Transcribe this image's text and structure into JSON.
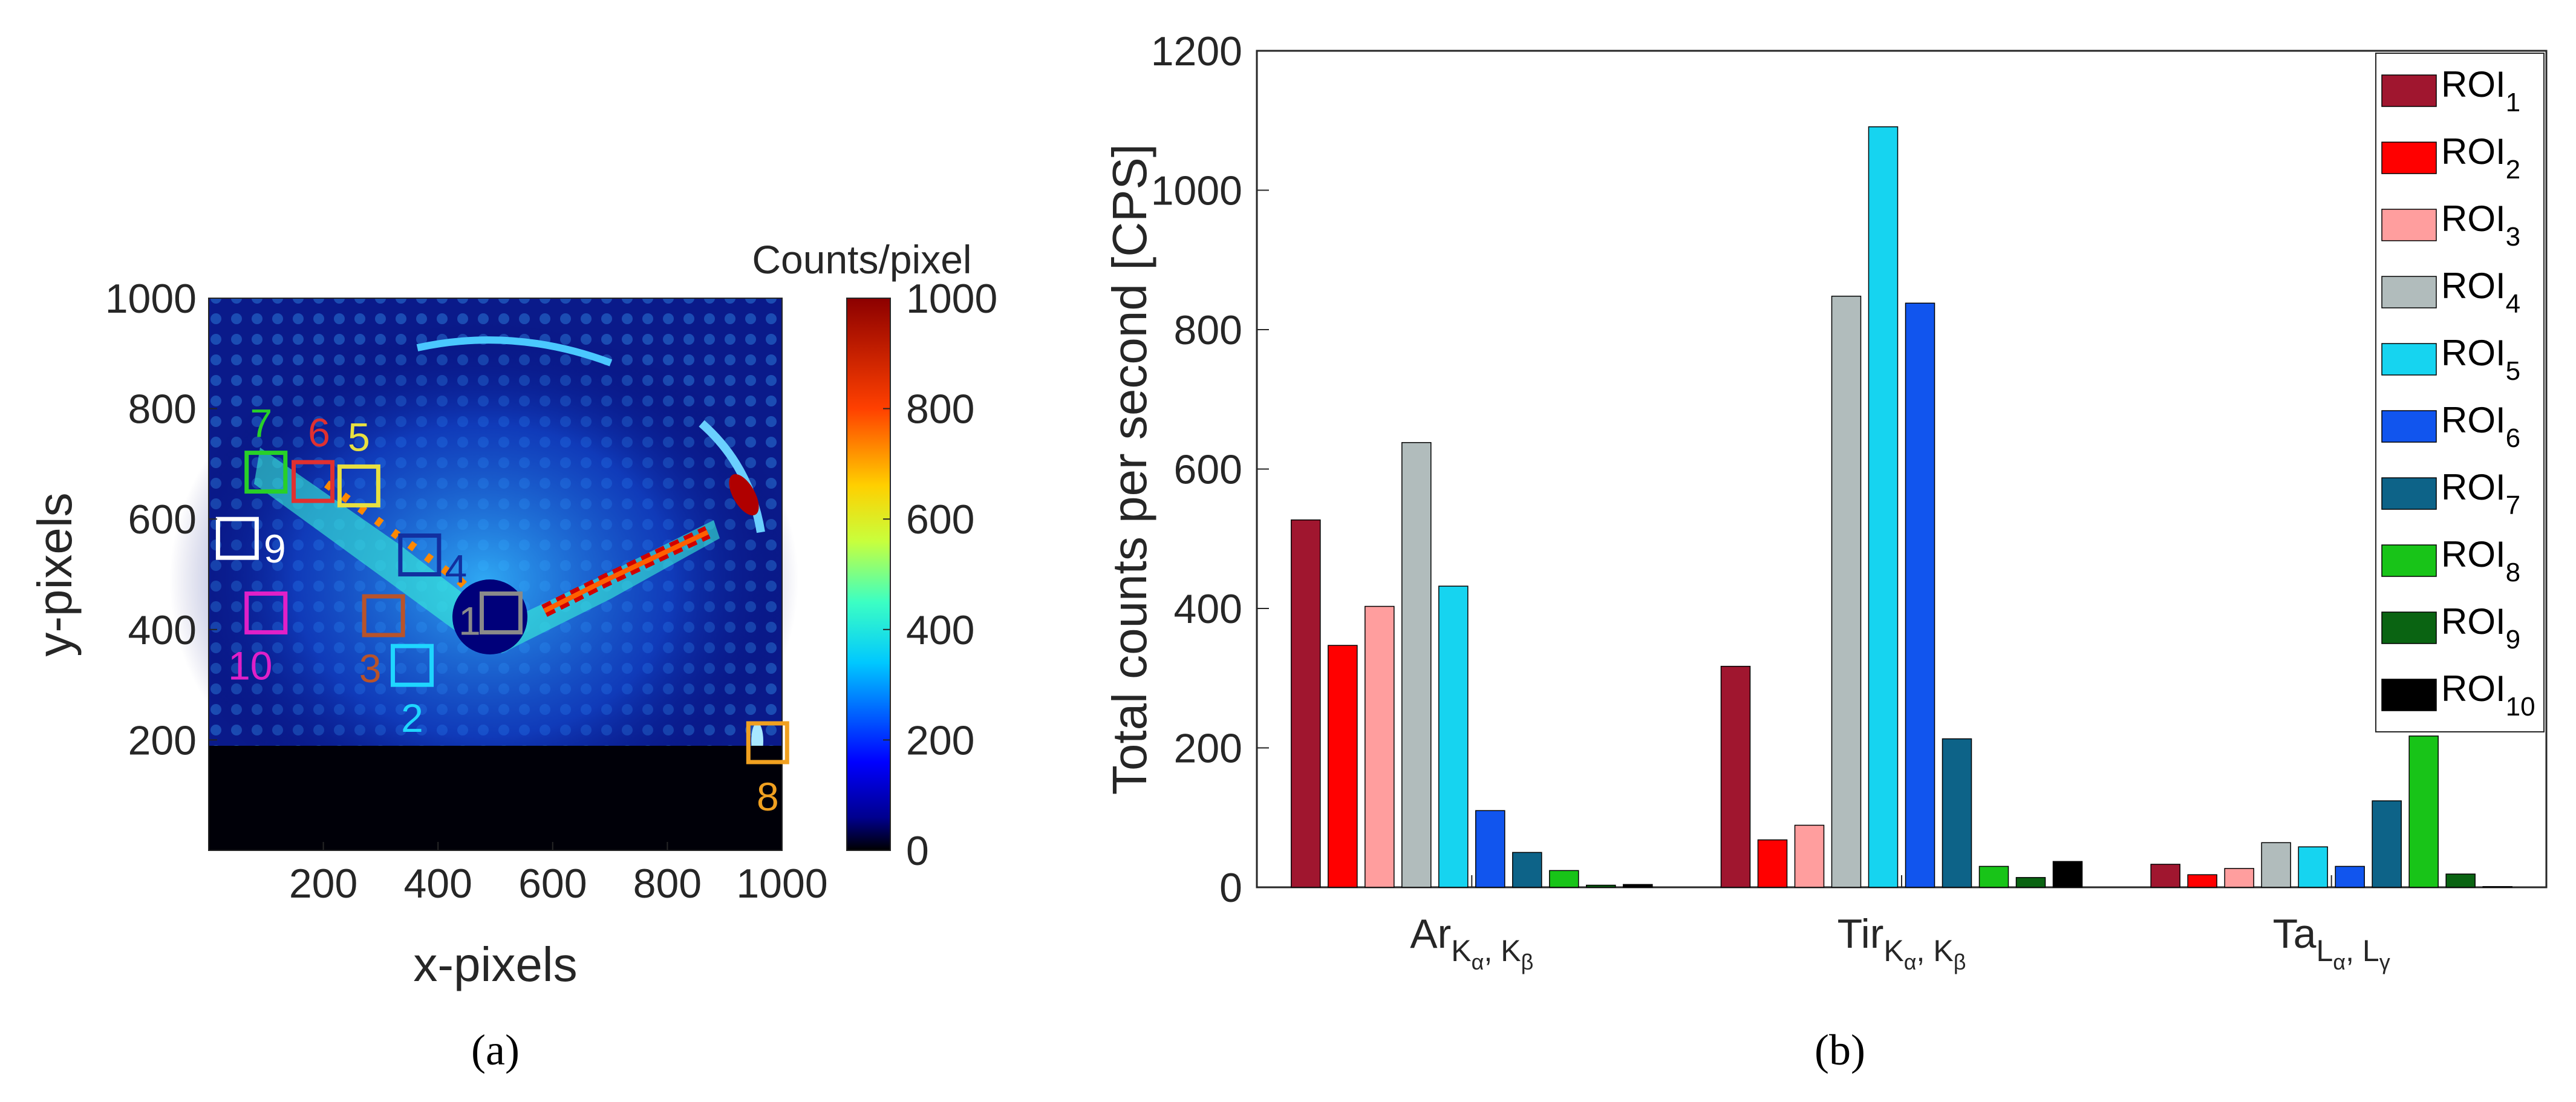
{
  "chart_data": [
    {
      "panel": "(a)",
      "type": "heatmap",
      "xlabel": "x-pixels",
      "ylabel": "y-pixels",
      "x_ticks": [
        "200",
        "400",
        "600",
        "800",
        "1000"
      ],
      "y_ticks": [
        "200",
        "400",
        "600",
        "800",
        "1000"
      ],
      "xlim": [
        0,
        1000
      ],
      "ylim": [
        0,
        1000
      ],
      "colorbar": {
        "title": "Counts/pixel",
        "range": [
          0,
          1000
        ],
        "ticks": [
          "0",
          "200",
          "400",
          "600",
          "800",
          "1000"
        ],
        "colormap": "jet"
      },
      "rois": [
        {
          "label": "1",
          "x": 510,
          "y": 430,
          "color": "#8a8a8a"
        },
        {
          "label": "2",
          "x": 355,
          "y": 335,
          "color": "#1fd6ff"
        },
        {
          "label": "3",
          "x": 305,
          "y": 425,
          "color": "#b8532a"
        },
        {
          "label": "4",
          "x": 368,
          "y": 535,
          "color": "#1230a0"
        },
        {
          "label": "5",
          "x": 262,
          "y": 660,
          "color": "#e8e040"
        },
        {
          "label": "6",
          "x": 182,
          "y": 668,
          "color": "#e03030"
        },
        {
          "label": "7",
          "x": 100,
          "y": 685,
          "color": "#28d028"
        },
        {
          "label": "8",
          "x": 975,
          "y": 195,
          "color": "#f0a020"
        },
        {
          "label": "9",
          "x": 50,
          "y": 565,
          "color": "#ffffff"
        },
        {
          "label": "10",
          "x": 100,
          "y": 430,
          "color": "#e020c8"
        }
      ]
    },
    {
      "panel": "(b)",
      "type": "bar",
      "ylabel": "Total counts per second [CPS]",
      "ylim": [
        0,
        1200
      ],
      "y_ticks": [
        "0",
        "200",
        "400",
        "600",
        "800",
        "1000",
        "1200"
      ],
      "categories": [
        {
          "main": "Ar",
          "sub1": "K",
          "sub1sub": "α",
          "sep": ", ",
          "sub2": "K",
          "sub2sub": "β"
        },
        {
          "main": "Tir",
          "sub1": "K",
          "sub1sub": "α",
          "sep": ", ",
          "sub2": "K",
          "sub2sub": "β"
        },
        {
          "main": "Ta",
          "sub1": "L",
          "sub1sub": "α",
          "sep": ", ",
          "sub2": "L",
          "sub2sub": "γ"
        }
      ],
      "series": [
        {
          "name": "ROI",
          "sub": "1",
          "color": "#a0162f",
          "values": [
            527,
            317,
            33
          ]
        },
        {
          "name": "ROI",
          "sub": "2",
          "color": "#ff0000",
          "values": [
            347,
            68,
            18
          ]
        },
        {
          "name": "ROI",
          "sub": "3",
          "color": "#ff9e9e",
          "values": [
            403,
            89,
            27
          ]
        },
        {
          "name": "ROI",
          "sub": "4",
          "color": "#b1bcbc",
          "values": [
            638,
            848,
            64
          ]
        },
        {
          "name": "ROI",
          "sub": "5",
          "color": "#16d4f0",
          "values": [
            432,
            1091,
            58
          ]
        },
        {
          "name": "ROI",
          "sub": "6",
          "color": "#1155ee",
          "values": [
            110,
            838,
            30
          ]
        },
        {
          "name": "ROI",
          "sub": "7",
          "color": "#0d6388",
          "values": [
            50,
            213,
            124
          ]
        },
        {
          "name": "ROI",
          "sub": "8",
          "color": "#18c418",
          "values": [
            24,
            30,
            217
          ]
        },
        {
          "name": "ROI",
          "sub": "9",
          "color": "#0a6412",
          "values": [
            3,
            14,
            19
          ]
        },
        {
          "name": "ROI",
          "sub": "10",
          "color": "#000000",
          "values": [
            4,
            37,
            1
          ]
        }
      ]
    }
  ]
}
